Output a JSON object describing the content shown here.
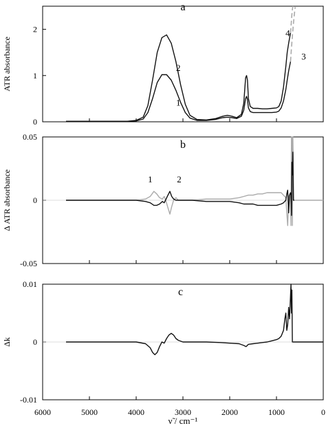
{
  "chart_data": [
    {
      "type": "line",
      "panel_label": "a",
      "ylabel": "ATR absorbance",
      "x_axis": "shared, reversed",
      "xlim": [
        6000,
        0
      ],
      "ylim": [
        0,
        2.5
      ],
      "yticks": [
        0,
        1,
        2
      ],
      "ytick_labels": [
        "0",
        "1",
        "2"
      ],
      "series": [
        {
          "name": "1",
          "color": "#111111",
          "style": "solid",
          "x": [
            5500,
            5000,
            4500,
            4200,
            4000,
            3850,
            3750,
            3650,
            3550,
            3450,
            3350,
            3250,
            3150,
            3050,
            2950,
            2850,
            2700,
            2500,
            2300,
            2150,
            2050,
            1950,
            1850,
            1750,
            1700,
            1660,
            1640,
            1620,
            1600,
            1560,
            1500,
            1400,
            1300,
            1200,
            1100,
            1000,
            950,
            900,
            850,
            800,
            770,
            740,
            700
          ],
          "y": [
            0.01,
            0.01,
            0.01,
            0.01,
            0.02,
            0.06,
            0.2,
            0.5,
            0.85,
            1.02,
            1.02,
            0.9,
            0.68,
            0.42,
            0.2,
            0.08,
            0.03,
            0.03,
            0.05,
            0.09,
            0.1,
            0.09,
            0.07,
            0.12,
            0.25,
            0.5,
            0.55,
            0.48,
            0.3,
            0.22,
            0.2,
            0.2,
            0.2,
            0.2,
            0.2,
            0.21,
            0.23,
            0.3,
            0.45,
            0.7,
            0.9,
            1.1,
            1.3
          ]
        },
        {
          "name": "2",
          "color": "#111111",
          "style": "solid",
          "x": [
            5500,
            5000,
            4500,
            4200,
            4000,
            3850,
            3750,
            3650,
            3550,
            3450,
            3350,
            3250,
            3150,
            3050,
            2950,
            2850,
            2700,
            2500,
            2300,
            2150,
            2050,
            1950,
            1850,
            1750,
            1700,
            1660,
            1640,
            1620,
            1600,
            1560,
            1500,
            1400,
            1300,
            1200,
            1100,
            1000,
            950,
            900,
            850,
            800,
            770,
            740,
            700
          ],
          "y": [
            0.01,
            0.01,
            0.01,
            0.01,
            0.03,
            0.1,
            0.35,
            0.9,
            1.5,
            1.82,
            1.88,
            1.7,
            1.3,
            0.8,
            0.38,
            0.14,
            0.05,
            0.04,
            0.07,
            0.12,
            0.14,
            0.12,
            0.09,
            0.16,
            0.4,
            0.95,
            1.0,
            0.9,
            0.5,
            0.33,
            0.29,
            0.29,
            0.28,
            0.28,
            0.29,
            0.3,
            0.33,
            0.45,
            0.75,
            1.2,
            1.5,
            1.7,
            1.92
          ]
        },
        {
          "name": "3",
          "color": "#aaaaaa",
          "style": "dashed",
          "x": [
            700,
            680,
            660,
            640,
            620,
            600
          ],
          "y": [
            1.3,
            1.6,
            1.85,
            2.1,
            2.3,
            2.48
          ]
        },
        {
          "name": "4",
          "color": "#aaaaaa",
          "style": "dashed",
          "x": [
            700,
            690,
            680,
            670,
            660,
            650
          ],
          "y": [
            1.92,
            2.05,
            2.2,
            2.32,
            2.42,
            2.5
          ]
        }
      ]
    },
    {
      "type": "line",
      "panel_label": "b",
      "ylabel": "Δ ATR absorbance",
      "x_axis": "shared, reversed",
      "xlim": [
        6000,
        0
      ],
      "ylim": [
        -0.05,
        0.05
      ],
      "yticks": [
        -0.05,
        0,
        0.05
      ],
      "ytick_labels": [
        "-0.05",
        "0",
        "0.05"
      ],
      "series": [
        {
          "name": "1",
          "color": "#aaaaaa",
          "style": "solid",
          "x": [
            5500,
            4500,
            4000,
            3800,
            3700,
            3620,
            3560,
            3500,
            3440,
            3400,
            3360,
            3320,
            3280,
            3240,
            3200,
            3150,
            3100,
            3000,
            2800,
            2500,
            2000,
            1800,
            1700,
            1600,
            1500,
            1400,
            1300,
            1200,
            1100,
            1000,
            900,
            850,
            800,
            780,
            760,
            740,
            720,
            700,
            690,
            680,
            670,
            660,
            650,
            630,
            600,
            500,
            400,
            300,
            200,
            100,
            0
          ],
          "y": [
            0.0,
            0.0,
            0.0,
            0.001,
            0.003,
            0.007,
            0.005,
            0.002,
            0.001,
            0.003,
            -0.001,
            -0.006,
            -0.011,
            -0.005,
            0.0,
            0.002,
            0.0,
            0.0,
            0.0,
            0.001,
            0.001,
            0.002,
            0.003,
            0.004,
            0.004,
            0.005,
            0.005,
            0.006,
            0.006,
            0.006,
            0.006,
            0.004,
            0.002,
            -0.01,
            -0.02,
            0.003,
            0.004,
            0.005,
            -0.02,
            0.05,
            0.05,
            -0.02,
            0.05,
            0.0,
            0.0,
            0.0,
            0.0,
            0.0,
            0.0,
            0.0,
            0.0
          ]
        },
        {
          "name": "2",
          "color": "#111111",
          "style": "solid",
          "x": [
            5500,
            4500,
            4000,
            3800,
            3700,
            3620,
            3560,
            3500,
            3440,
            3400,
            3360,
            3320,
            3280,
            3240,
            3200,
            3150,
            3100,
            3000,
            2800,
            2500,
            2000,
            1800,
            1700,
            1600,
            1500,
            1400,
            1300,
            1200,
            1100,
            1000,
            900,
            850,
            800,
            780,
            760,
            740,
            720,
            700,
            690,
            680,
            670,
            660,
            650,
            640,
            620
          ],
          "y": [
            0.0,
            0.0,
            0.0,
            -0.001,
            -0.002,
            -0.004,
            -0.004,
            -0.003,
            -0.001,
            -0.002,
            0.001,
            0.004,
            0.007,
            0.003,
            0.001,
            0.0,
            0.0,
            0.0,
            0.0,
            -0.001,
            -0.001,
            -0.002,
            -0.003,
            -0.003,
            -0.003,
            -0.004,
            -0.004,
            -0.004,
            -0.004,
            -0.004,
            -0.003,
            -0.002,
            0.0,
            0.005,
            0.008,
            -0.01,
            0.004,
            0.006,
            0.004,
            -0.012,
            0.03,
            0.02,
            0.038,
            0.0,
            0.0
          ]
        }
      ]
    },
    {
      "type": "line",
      "panel_label": "c",
      "ylabel": "Δk",
      "xlabel": "ν̃ / cm⁻¹",
      "xlim": [
        6000,
        0
      ],
      "ylim": [
        -0.01,
        0.01
      ],
      "yticks": [
        -0.01,
        0,
        0.01
      ],
      "ytick_labels": [
        "-0.01",
        "0",
        "0.01"
      ],
      "xticks": [
        6000,
        5000,
        4000,
        3000,
        2000,
        1000,
        0
      ],
      "xtick_labels": [
        "6000",
        "5000",
        "4000",
        "3000",
        "2000",
        "1000",
        "0"
      ],
      "series": [
        {
          "name": "",
          "color": "#111111",
          "style": "solid",
          "x": [
            5500,
            5000,
            4500,
            4000,
            3800,
            3700,
            3650,
            3600,
            3550,
            3500,
            3450,
            3400,
            3350,
            3300,
            3250,
            3200,
            3150,
            3100,
            3000,
            2900,
            2800,
            2500,
            2200,
            2000,
            1800,
            1700,
            1650,
            1600,
            1500,
            1400,
            1300,
            1200,
            1100,
            1000,
            950,
            900,
            850,
            820,
            800,
            780,
            760,
            740,
            720,
            700,
            690,
            680,
            670,
            660,
            650
          ],
          "y": [
            0.0,
            0.0,
            0.0,
            0.0,
            -0.0003,
            -0.001,
            -0.0018,
            -0.0022,
            -0.0018,
            -0.0008,
            0.0,
            -0.0002,
            0.0006,
            0.0012,
            0.0015,
            0.0012,
            0.0006,
            0.0003,
            0.0,
            0.0,
            0.0,
            0.0,
            -0.0001,
            -0.0002,
            -0.0003,
            -0.0006,
            -0.0008,
            -0.0004,
            -0.0003,
            -0.0002,
            -0.0001,
            0.0,
            0.0002,
            0.0004,
            0.0006,
            0.001,
            0.002,
            0.004,
            0.005,
            0.002,
            0.003,
            0.006,
            0.004,
            0.008,
            0.01,
            0.005,
            0.009,
            0.0,
            0.0
          ]
        },
        {
          "name": "",
          "color": "#111111",
          "style": "solid",
          "x": [
            650,
            0
          ],
          "y": [
            0.0,
            0.0
          ]
        }
      ]
    }
  ]
}
